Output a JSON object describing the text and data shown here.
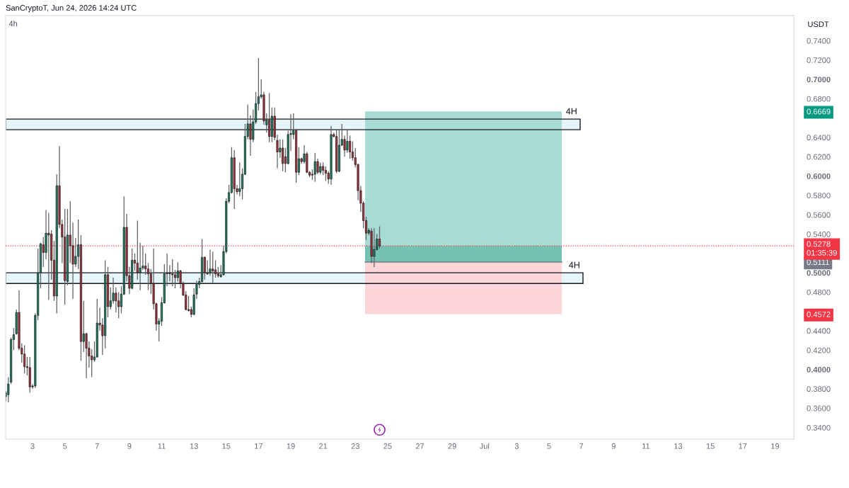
{
  "chart_data": {
    "type": "candlestick",
    "title": "4h",
    "ylabel": "USDT",
    "annotations": [
      "SanCryptoT, Jun 24, 2026 14:24 UTC"
    ],
    "x": [
      "2026-06-01T08:00",
      "2026-06-01T12:00",
      "2026-06-01T16:00",
      "2026-06-01T20:00",
      "2026-06-02T00:00",
      "2026-06-02T04:00",
      "2026-06-02T08:00",
      "2026-06-02T12:00",
      "2026-06-02T16:00",
      "2026-06-02T20:00",
      "2026-06-03T00:00",
      "2026-06-03T04:00",
      "2026-06-03T08:00",
      "2026-06-03T12:00",
      "2026-06-03T16:00",
      "2026-06-03T20:00",
      "2026-06-04T00:00",
      "2026-06-04T04:00",
      "2026-06-04T08:00",
      "2026-06-04T12:00",
      "2026-06-04T16:00",
      "2026-06-04T20:00",
      "2026-06-05T00:00",
      "2026-06-05T04:00",
      "2026-06-05T08:00",
      "2026-06-05T12:00",
      "2026-06-05T16:00",
      "2026-06-05T20:00",
      "2026-06-06T00:00",
      "2026-06-06T04:00",
      "2026-06-06T08:00",
      "2026-06-06T12:00",
      "2026-06-06T16:00",
      "2026-06-06T20:00",
      "2026-06-07T00:00",
      "2026-06-07T04:00",
      "2026-06-07T08:00",
      "2026-06-07T12:00",
      "2026-06-07T16:00",
      "2026-06-07T20:00",
      "2026-06-08T00:00",
      "2026-06-08T04:00",
      "2026-06-08T08:00",
      "2026-06-08T12:00",
      "2026-06-08T16:00",
      "2026-06-08T20:00",
      "2026-06-09T00:00",
      "2026-06-09T04:00",
      "2026-06-09T08:00",
      "2026-06-09T12:00",
      "2026-06-09T16:00",
      "2026-06-09T20:00",
      "2026-06-10T00:00",
      "2026-06-10T04:00",
      "2026-06-10T08:00",
      "2026-06-10T12:00",
      "2026-06-10T16:00",
      "2026-06-10T20:00",
      "2026-06-11T00:00",
      "2026-06-11T04:00",
      "2026-06-11T08:00",
      "2026-06-11T12:00",
      "2026-06-11T16:00",
      "2026-06-11T20:00",
      "2026-06-12T00:00",
      "2026-06-12T04:00",
      "2026-06-12T08:00",
      "2026-06-12T12:00",
      "2026-06-12T16:00",
      "2026-06-12T20:00",
      "2026-06-13T00:00",
      "2026-06-13T04:00",
      "2026-06-13T08:00",
      "2026-06-13T12:00",
      "2026-06-13T16:00",
      "2026-06-13T20:00",
      "2026-06-14T00:00",
      "2026-06-14T04:00",
      "2026-06-14T08:00",
      "2026-06-14T12:00",
      "2026-06-14T16:00",
      "2026-06-14T20:00",
      "2026-06-15T00:00",
      "2026-06-15T04:00",
      "2026-06-15T08:00",
      "2026-06-15T12:00",
      "2026-06-15T16:00",
      "2026-06-15T20:00",
      "2026-06-16T00:00",
      "2026-06-16T04:00",
      "2026-06-16T08:00",
      "2026-06-16T12:00",
      "2026-06-16T16:00",
      "2026-06-16T20:00",
      "2026-06-17T00:00",
      "2026-06-17T04:00",
      "2026-06-17T08:00",
      "2026-06-17T12:00",
      "2026-06-17T16:00",
      "2026-06-17T20:00",
      "2026-06-18T00:00",
      "2026-06-18T04:00",
      "2026-06-18T08:00",
      "2026-06-18T12:00",
      "2026-06-18T16:00",
      "2026-06-18T20:00",
      "2026-06-19T00:00",
      "2026-06-19T04:00",
      "2026-06-19T08:00",
      "2026-06-19T12:00",
      "2026-06-19T16:00",
      "2026-06-19T20:00",
      "2026-06-20T00:00",
      "2026-06-20T04:00",
      "2026-06-20T08:00",
      "2026-06-20T12:00",
      "2026-06-20T16:00",
      "2026-06-20T20:00",
      "2026-06-21T00:00",
      "2026-06-21T04:00",
      "2026-06-21T08:00",
      "2026-06-21T12:00",
      "2026-06-21T16:00",
      "2026-06-21T20:00",
      "2026-06-22T00:00",
      "2026-06-22T04:00",
      "2026-06-22T08:00",
      "2026-06-22T12:00",
      "2026-06-22T16:00",
      "2026-06-22T20:00",
      "2026-06-23T00:00",
      "2026-06-23T04:00",
      "2026-06-23T08:00",
      "2026-06-23T12:00",
      "2026-06-23T16:00",
      "2026-06-23T20:00",
      "2026-06-24T00:00",
      "2026-06-24T04:00",
      "2026-06-24T08:00",
      "2026-06-24T12:00"
    ],
    "ohlc": [
      [
        0.372,
        0.378,
        0.367,
        0.376
      ],
      [
        0.374,
        0.392,
        0.366,
        0.385
      ],
      [
        0.387,
        0.433,
        0.385,
        0.431
      ],
      [
        0.431,
        0.443,
        0.42,
        0.436
      ],
      [
        0.437,
        0.462,
        0.436,
        0.459
      ],
      [
        0.459,
        0.482,
        0.42,
        0.422
      ],
      [
        0.422,
        0.427,
        0.407,
        0.416
      ],
      [
        0.416,
        0.425,
        0.396,
        0.403
      ],
      [
        0.403,
        0.413,
        0.394,
        0.402
      ],
      [
        0.402,
        0.413,
        0.376,
        0.382
      ],
      [
        0.382,
        0.385,
        0.38,
        0.383
      ],
      [
        0.383,
        0.458,
        0.381,
        0.456
      ],
      [
        0.456,
        0.525,
        0.451,
        0.5
      ],
      [
        0.5,
        0.531,
        0.484,
        0.53
      ],
      [
        0.529,
        0.537,
        0.506,
        0.521
      ],
      [
        0.521,
        0.565,
        0.514,
        0.541
      ],
      [
        0.541,
        0.562,
        0.472,
        0.539
      ],
      [
        0.54,
        0.544,
        0.493,
        0.513
      ],
      [
        0.513,
        0.533,
        0.471,
        0.476
      ],
      [
        0.476,
        0.602,
        0.458,
        0.59
      ],
      [
        0.59,
        0.631,
        0.546,
        0.55
      ],
      [
        0.55,
        0.555,
        0.51,
        0.537
      ],
      [
        0.537,
        0.566,
        0.467,
        0.492
      ],
      [
        0.491,
        0.566,
        0.487,
        0.539
      ],
      [
        0.539,
        0.574,
        0.51,
        0.528
      ],
      [
        0.528,
        0.552,
        0.473,
        0.509
      ],
      [
        0.509,
        0.536,
        0.506,
        0.517
      ],
      [
        0.517,
        0.555,
        0.504,
        0.529
      ],
      [
        0.529,
        0.539,
        0.409,
        0.429
      ],
      [
        0.429,
        0.471,
        0.418,
        0.437
      ],
      [
        0.437,
        0.438,
        0.391,
        0.422
      ],
      [
        0.422,
        0.429,
        0.402,
        0.414
      ],
      [
        0.414,
        0.421,
        0.392,
        0.41
      ],
      [
        0.41,
        0.429,
        0.408,
        0.413
      ],
      [
        0.413,
        0.473,
        0.412,
        0.448
      ],
      [
        0.448,
        0.464,
        0.44,
        0.446
      ],
      [
        0.446,
        0.453,
        0.415,
        0.435
      ],
      [
        0.435,
        0.513,
        0.422,
        0.498
      ],
      [
        0.498,
        0.506,
        0.454,
        0.465
      ],
      [
        0.465,
        0.485,
        0.462,
        0.471
      ],
      [
        0.471,
        0.495,
        0.468,
        0.479
      ],
      [
        0.479,
        0.485,
        0.459,
        0.471
      ],
      [
        0.471,
        0.48,
        0.453,
        0.465
      ],
      [
        0.465,
        0.486,
        0.458,
        0.478
      ],
      [
        0.478,
        0.579,
        0.477,
        0.547
      ],
      [
        0.547,
        0.561,
        0.491,
        0.497
      ],
      [
        0.497,
        0.506,
        0.478,
        0.484
      ],
      [
        0.484,
        0.525,
        0.483,
        0.513
      ],
      [
        0.513,
        0.52,
        0.502,
        0.51
      ],
      [
        0.51,
        0.554,
        0.493,
        0.5
      ],
      [
        0.5,
        0.531,
        0.482,
        0.505
      ],
      [
        0.505,
        0.528,
        0.503,
        0.507
      ],
      [
        0.507,
        0.52,
        0.498,
        0.504
      ],
      [
        0.504,
        0.51,
        0.482,
        0.499
      ],
      [
        0.499,
        0.504,
        0.478,
        0.489
      ],
      [
        0.489,
        0.525,
        0.462,
        0.468
      ],
      [
        0.468,
        0.469,
        0.44,
        0.447
      ],
      [
        0.447,
        0.453,
        0.429,
        0.45
      ],
      [
        0.45,
        0.475,
        0.445,
        0.469
      ],
      [
        0.469,
        0.509,
        0.468,
        0.499
      ],
      [
        0.499,
        0.52,
        0.486,
        0.5
      ],
      [
        0.5,
        0.508,
        0.491,
        0.499
      ],
      [
        0.499,
        0.514,
        0.486,
        0.498
      ],
      [
        0.498,
        0.503,
        0.484,
        0.495
      ],
      [
        0.495,
        0.511,
        0.491,
        0.502
      ],
      [
        0.502,
        0.503,
        0.484,
        0.489
      ],
      [
        0.489,
        0.491,
        0.476,
        0.477
      ],
      [
        0.477,
        0.481,
        0.461,
        0.462
      ],
      [
        0.462,
        0.476,
        0.46,
        0.461
      ],
      [
        0.462,
        0.465,
        0.454,
        0.457
      ],
      [
        0.457,
        0.484,
        0.456,
        0.477
      ],
      [
        0.478,
        0.492,
        0.473,
        0.488
      ],
      [
        0.488,
        0.495,
        0.484,
        0.491
      ],
      [
        0.491,
        0.535,
        0.49,
        0.516
      ],
      [
        0.516,
        0.517,
        0.493,
        0.5
      ],
      [
        0.5,
        0.513,
        0.498,
        0.499
      ],
      [
        0.5,
        0.524,
        0.497,
        0.504
      ],
      [
        0.504,
        0.522,
        0.489,
        0.502
      ],
      [
        0.503,
        0.513,
        0.495,
        0.499
      ],
      [
        0.499,
        0.506,
        0.495,
        0.497
      ],
      [
        0.496,
        0.508,
        0.495,
        0.498
      ],
      [
        0.498,
        0.528,
        0.497,
        0.522
      ],
      [
        0.522,
        0.577,
        0.52,
        0.574
      ],
      [
        0.574,
        0.591,
        0.572,
        0.583
      ],
      [
        0.583,
        0.63,
        0.582,
        0.619
      ],
      [
        0.619,
        0.627,
        0.566,
        0.587
      ],
      [
        0.587,
        0.591,
        0.581,
        0.584
      ],
      [
        0.584,
        0.614,
        0.579,
        0.587
      ],
      [
        0.587,
        0.608,
        0.576,
        0.602
      ],
      [
        0.602,
        0.654,
        0.601,
        0.641
      ],
      [
        0.641,
        0.674,
        0.638,
        0.654
      ],
      [
        0.654,
        0.663,
        0.621,
        0.638
      ],
      [
        0.638,
        0.669,
        0.635,
        0.656
      ],
      [
        0.656,
        0.687,
        0.654,
        0.675
      ],
      [
        0.675,
        0.722,
        0.668,
        0.682
      ],
      [
        0.682,
        0.7,
        0.68,
        0.684
      ],
      [
        0.684,
        0.687,
        0.653,
        0.657
      ],
      [
        0.653,
        0.665,
        0.645,
        0.658
      ],
      [
        0.658,
        0.686,
        0.635,
        0.641
      ],
      [
        0.641,
        0.671,
        0.635,
        0.662
      ],
      [
        0.662,
        0.671,
        0.637,
        0.64
      ],
      [
        0.637,
        0.643,
        0.608,
        0.625
      ],
      [
        0.625,
        0.638,
        0.619,
        0.629
      ],
      [
        0.629,
        0.638,
        0.605,
        0.613
      ],
      [
        0.62,
        0.629,
        0.604,
        0.613
      ],
      [
        0.613,
        0.647,
        0.612,
        0.643
      ],
      [
        0.643,
        0.664,
        0.626,
        0.644
      ],
      [
        0.643,
        0.665,
        0.638,
        0.647
      ],
      [
        0.647,
        0.649,
        0.593,
        0.604
      ],
      [
        0.604,
        0.63,
        0.601,
        0.618
      ],
      [
        0.618,
        0.619,
        0.613,
        0.615
      ],
      [
        0.615,
        0.632,
        0.613,
        0.623
      ],
      [
        0.623,
        0.625,
        0.603,
        0.604
      ],
      [
        0.604,
        0.605,
        0.599,
        0.601
      ],
      [
        0.601,
        0.607,
        0.596,
        0.602
      ],
      [
        0.602,
        0.624,
        0.594,
        0.615
      ],
      [
        0.615,
        0.618,
        0.602,
        0.604
      ],
      [
        0.604,
        0.614,
        0.602,
        0.61
      ],
      [
        0.61,
        0.614,
        0.601,
        0.606
      ],
      [
        0.606,
        0.61,
        0.595,
        0.603
      ],
      [
        0.603,
        0.605,
        0.592,
        0.597
      ],
      [
        0.597,
        0.652,
        0.591,
        0.643
      ],
      [
        0.643,
        0.645,
        0.64,
        0.641
      ],
      [
        0.641,
        0.648,
        0.603,
        0.605
      ],
      [
        0.605,
        0.648,
        0.604,
        0.632
      ],
      [
        0.632,
        0.654,
        0.631,
        0.638
      ],
      [
        0.638,
        0.642,
        0.62,
        0.627
      ],
      [
        0.627,
        0.648,
        0.624,
        0.636
      ],
      [
        0.636,
        0.642,
        0.618,
        0.625
      ],
      [
        0.625,
        0.636,
        0.616,
        0.619
      ],
      [
        0.619,
        0.629,
        0.609,
        0.612
      ],
      [
        0.612,
        0.613,
        0.575,
        0.585
      ],
      [
        0.585,
        0.59,
        0.563,
        0.572
      ],
      [
        0.572,
        0.574,
        0.546,
        0.554
      ],
      [
        0.554,
        0.558,
        0.534,
        0.541
      ],
      [
        0.541,
        0.546,
        0.539,
        0.544
      ],
      [
        0.543,
        0.546,
        0.51,
        0.517
      ],
      [
        0.517,
        0.546,
        0.506,
        0.524
      ],
      [
        0.524,
        0.54,
        0.523,
        0.535
      ],
      [
        0.535,
        0.548,
        0.525,
        0.5278
      ]
    ],
    "colors": [
      "#1e8068",
      "#1e8068",
      "#1e8068",
      "#1e8068",
      "#1e8068",
      "#a9333d",
      "#a9333d",
      "#a9333d",
      "#a9333d",
      "#a9333d",
      "#1e8068",
      "#1e8068",
      "#1e8068",
      "#1e8068",
      "#a9333d",
      "#1e8068",
      "#a9333d",
      "#a9333d",
      "#a9333d",
      "#1e8068",
      "#a9333d",
      "#a9333d",
      "#a9333d",
      "#1e8068",
      "#a9333d",
      "#a9333d",
      "#1e8068",
      "#1e8068",
      "#a9333d",
      "#1e8068",
      "#a9333d",
      "#a9333d",
      "#a9333d",
      "#1e8068",
      "#1e8068",
      "#a9333d",
      "#a9333d",
      "#1e8068",
      "#a9333d",
      "#1e8068",
      "#1e8068",
      "#a9333d",
      "#a9333d",
      "#1e8068",
      "#1e8068",
      "#a9333d",
      "#a9333d",
      "#1e8068",
      "#a9333d",
      "#a9333d",
      "#1e8068",
      "#1e8068",
      "#a9333d",
      "#a9333d",
      "#a9333d",
      "#a9333d",
      "#a9333d",
      "#1e8068",
      "#1e8068",
      "#1e8068",
      "#1e8068",
      "#a9333d",
      "#a9333d",
      "#a9333d",
      "#1e8068",
      "#a9333d",
      "#a9333d",
      "#a9333d",
      "#a9333d",
      "#a9333d",
      "#1e8068",
      "#1e8068",
      "#1e8068",
      "#1e8068",
      "#a9333d",
      "#a9333d",
      "#1e8068",
      "#a9333d",
      "#a9333d",
      "#a9333d",
      "#1e8068",
      "#1e8068",
      "#1e8068",
      "#1e8068",
      "#1e8068",
      "#a9333d",
      "#a9333d",
      "#1e8068",
      "#1e8068",
      "#1e8068",
      "#1e8068",
      "#a9333d",
      "#1e8068",
      "#1e8068",
      "#1e8068",
      "#1e8068",
      "#a9333d",
      "#1e8068",
      "#a9333d",
      "#1e8068",
      "#a9333d",
      "#a9333d",
      "#1e8068",
      "#a9333d",
      "#a9333d",
      "#1e8068",
      "#1e8068",
      "#1e8068",
      "#a9333d",
      "#1e8068",
      "#a9333d",
      "#1e8068",
      "#a9333d",
      "#a9333d",
      "#1e8068",
      "#1e8068",
      "#a9333d",
      "#1e8068",
      "#a9333d",
      "#a9333d",
      "#a9333d",
      "#1e8068",
      "#a9333d",
      "#a9333d",
      "#1e8068",
      "#1e8068",
      "#a9333d",
      "#1e8068",
      "#a9333d",
      "#a9333d",
      "#a9333d",
      "#a9333d",
      "#a9333d",
      "#a9333d",
      "#a9333d",
      "#1e8068",
      "#a9333d",
      "#1e8068",
      "#1e8068",
      "#a9333d"
    ],
    "xlim": [
      "2026-06-01T08:00",
      "2026-07-20T04:00"
    ],
    "ylim": [
      0.328,
      0.766
    ],
    "xticks": [
      {
        "value": "2026-06-03",
        "label": "3"
      },
      {
        "value": "2026-06-05",
        "label": "5"
      },
      {
        "value": "2026-06-07",
        "label": "7"
      },
      {
        "value": "2026-06-09",
        "label": "9"
      },
      {
        "value": "2026-06-11",
        "label": "11"
      },
      {
        "value": "2026-06-13",
        "label": "13"
      },
      {
        "value": "2026-06-15",
        "label": "15"
      },
      {
        "value": "2026-06-17",
        "label": "17"
      },
      {
        "value": "2026-06-19",
        "label": "19"
      },
      {
        "value": "2026-06-21",
        "label": "21"
      },
      {
        "value": "2026-06-23",
        "label": "23"
      },
      {
        "value": "2026-06-25",
        "label": "25"
      },
      {
        "value": "2026-06-27",
        "label": "27"
      },
      {
        "value": "2026-06-29",
        "label": "29"
      },
      {
        "value": "2026-07-01",
        "label": "Jul"
      },
      {
        "value": "2026-07-03",
        "label": "3"
      },
      {
        "value": "2026-07-05",
        "label": "5"
      },
      {
        "value": "2026-07-07",
        "label": "7"
      },
      {
        "value": "2026-07-09",
        "label": "9"
      },
      {
        "value": "2026-07-11",
        "label": "11"
      },
      {
        "value": "2026-07-13",
        "label": "13"
      },
      {
        "value": "2026-07-15",
        "label": "15"
      },
      {
        "value": "2026-07-17",
        "label": "17"
      },
      {
        "value": "2026-07-19",
        "label": "19"
      }
    ],
    "yticks": [
      {
        "value": 0.34,
        "label": "0.3400"
      },
      {
        "value": 0.36,
        "label": "0.3600"
      },
      {
        "value": 0.38,
        "label": "0.3800"
      },
      {
        "value": 0.4,
        "label": "0.4000"
      },
      {
        "value": 0.42,
        "label": "0.4200"
      },
      {
        "value": 0.44,
        "label": "0.4400"
      },
      0.4572,
      {
        "value": 0.48,
        "label": "0.4800"
      },
      {
        "value": 0.5,
        "label": "0.5000"
      },
      0.5111,
      {
        "value": 0.54,
        "label": "0.5400"
      },
      {
        "value": 0.56,
        "label": "0.5600"
      },
      {
        "value": 0.58,
        "label": "0.5800"
      },
      {
        "value": 0.6,
        "label": "0.6000"
      },
      {
        "value": 0.62,
        "label": "0.6200"
      },
      {
        "value": 0.64,
        "label": "0.6400"
      },
      0.6669,
      {
        "value": 0.68,
        "label": "0.6800"
      },
      {
        "value": 0.7,
        "label": "0.7000"
      },
      {
        "value": 0.72,
        "label": "0.7200"
      },
      {
        "value": 0.74,
        "label": "0.7400"
      }
    ],
    "bands": [
      {
        "axis": "y",
        "from": 0.648,
        "to": 0.659,
        "color": "#e6f6f8",
        "label": "4H"
      },
      {
        "axis": "y",
        "from": 0.489,
        "to": 0.5,
        "color": "#e6f6f8",
        "label": "4H"
      },
      {
        "axis": "y",
        "from": 0.5111,
        "to": 0.6669,
        "color": "#a8dcd2"
      },
      {
        "axis": "y",
        "from": 0.5111,
        "to": 0.5278,
        "color": "#74c2b2"
      },
      {
        "axis": "y",
        "from": 0.4572,
        "to": 0.5111,
        "color": "#fcd6d8"
      }
    ],
    "ref_lines": [
      {
        "axis": "y",
        "value": 0.5278,
        "label": "0.5278\n01:35:39",
        "color": "#f23645",
        "line_style": "dotted"
      }
    ]
  }
}
